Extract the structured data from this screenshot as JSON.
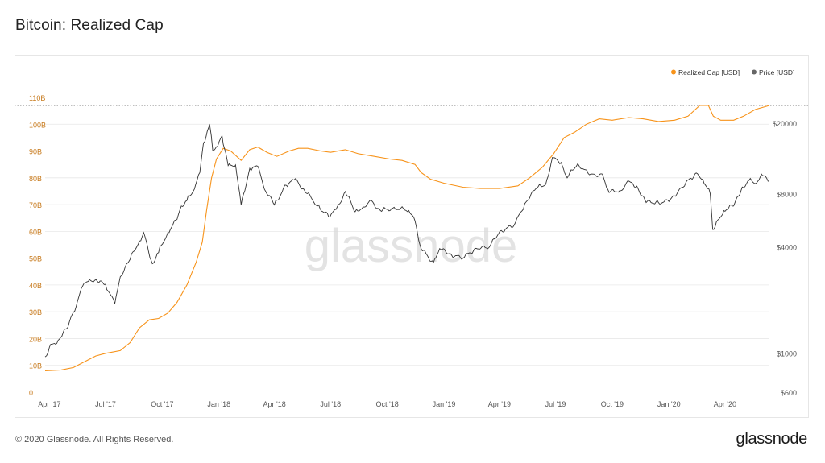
{
  "page": {
    "title": "Bitcoin: Realized Cap",
    "footer_copyright": "© 2020 Glassnode. All Rights Reserved.",
    "footer_brand": "glassnode",
    "watermark": "glassnode"
  },
  "colors": {
    "realized_cap": "#f7931a",
    "price": "#333333",
    "left_axis_text": "#c77a1d",
    "grid": "#e8e8e8"
  },
  "chart_data": {
    "type": "line",
    "title": "Bitcoin: Realized Cap",
    "legend": {
      "placement": "top-right",
      "entries": [
        {
          "label": "Realized Cap [USD]",
          "color": "#f7931a"
        },
        {
          "label": "Price [USD]",
          "color": "#666666"
        }
      ]
    },
    "x_axis": {
      "type": "date",
      "range": [
        "2017-03-25",
        "2020-06-12"
      ],
      "ticks": [
        {
          "date": "2017-04-01",
          "label": "Apr '17"
        },
        {
          "date": "2017-07-01",
          "label": "Jul '17"
        },
        {
          "date": "2017-10-01",
          "label": "Oct '17"
        },
        {
          "date": "2018-01-01",
          "label": "Jan '18"
        },
        {
          "date": "2018-04-01",
          "label": "Apr '18"
        },
        {
          "date": "2018-07-01",
          "label": "Jul '18"
        },
        {
          "date": "2018-10-01",
          "label": "Oct '18"
        },
        {
          "date": "2019-01-01",
          "label": "Jan '19"
        },
        {
          "date": "2019-04-01",
          "label": "Apr '19"
        },
        {
          "date": "2019-07-01",
          "label": "Jul '19"
        },
        {
          "date": "2019-10-01",
          "label": "Oct '19"
        },
        {
          "date": "2020-01-01",
          "label": "Jan '20"
        },
        {
          "date": "2020-04-01",
          "label": "Apr '20"
        }
      ]
    },
    "y_left": {
      "scale": "linear",
      "range": [
        0,
        110000000000
      ],
      "ticks": [
        {
          "value": 0,
          "label": "0"
        },
        {
          "value": 10000000000,
          "label": "10B"
        },
        {
          "value": 20000000000,
          "label": "20B"
        },
        {
          "value": 30000000000,
          "label": "30B"
        },
        {
          "value": 40000000000,
          "label": "40B"
        },
        {
          "value": 50000000000,
          "label": "50B"
        },
        {
          "value": 60000000000,
          "label": "60B"
        },
        {
          "value": 70000000000,
          "label": "70B"
        },
        {
          "value": 80000000000,
          "label": "80B"
        },
        {
          "value": 90000000000,
          "label": "90B"
        },
        {
          "value": 100000000000,
          "label": "100B"
        },
        {
          "value": 110000000000,
          "label": "110B"
        }
      ]
    },
    "y_right": {
      "scale": "log",
      "range": [
        600,
        20000
      ],
      "ticks": [
        {
          "value": 600,
          "label": "$600"
        },
        {
          "value": 1000,
          "label": "$1000"
        },
        {
          "value": 4000,
          "label": "$4000"
        },
        {
          "value": 8000,
          "label": "$8000"
        },
        {
          "value": 20000,
          "label": "$20000"
        }
      ]
    },
    "reference_line": {
      "value": 107000000000,
      "style": "dotted"
    },
    "series": [
      {
        "name": "Realized Cap [USD]",
        "axis": "left",
        "points": [
          [
            "2017-03-25",
            8000000000
          ],
          [
            "2017-04-20",
            8300000000
          ],
          [
            "2017-05-10",
            9200000000
          ],
          [
            "2017-05-25",
            11000000000
          ],
          [
            "2017-06-15",
            13500000000
          ],
          [
            "2017-07-01",
            14500000000
          ],
          [
            "2017-07-25",
            15500000000
          ],
          [
            "2017-08-10",
            18500000000
          ],
          [
            "2017-08-25",
            24000000000
          ],
          [
            "2017-09-10",
            27000000000
          ],
          [
            "2017-09-25",
            27500000000
          ],
          [
            "2017-10-10",
            29500000000
          ],
          [
            "2017-10-25",
            33500000000
          ],
          [
            "2017-11-10",
            40000000000
          ],
          [
            "2017-11-25",
            48500000000
          ],
          [
            "2017-12-05",
            56000000000
          ],
          [
            "2017-12-12",
            68000000000
          ],
          [
            "2017-12-20",
            80000000000
          ],
          [
            "2017-12-28",
            87000000000
          ],
          [
            "2018-01-08",
            91000000000
          ],
          [
            "2018-01-20",
            90000000000
          ],
          [
            "2018-02-06",
            86500000000
          ],
          [
            "2018-02-20",
            90500000000
          ],
          [
            "2018-03-05",
            91500000000
          ],
          [
            "2018-03-20",
            89500000000
          ],
          [
            "2018-04-05",
            88000000000
          ],
          [
            "2018-04-25",
            90000000000
          ],
          [
            "2018-05-10",
            91000000000
          ],
          [
            "2018-05-25",
            91000000000
          ],
          [
            "2018-06-15",
            90000000000
          ],
          [
            "2018-07-01",
            89500000000
          ],
          [
            "2018-07-25",
            90500000000
          ],
          [
            "2018-08-15",
            89000000000
          ],
          [
            "2018-09-10",
            88000000000
          ],
          [
            "2018-10-05",
            87000000000
          ],
          [
            "2018-10-25",
            86500000000
          ],
          [
            "2018-11-15",
            85000000000
          ],
          [
            "2018-11-25",
            82000000000
          ],
          [
            "2018-12-10",
            79500000000
          ],
          [
            "2019-01-01",
            78000000000
          ],
          [
            "2019-02-01",
            76500000000
          ],
          [
            "2019-03-01",
            76000000000
          ],
          [
            "2019-04-01",
            76000000000
          ],
          [
            "2019-05-01",
            77000000000
          ],
          [
            "2019-05-20",
            80000000000
          ],
          [
            "2019-06-10",
            84000000000
          ],
          [
            "2019-06-28",
            89000000000
          ],
          [
            "2019-07-15",
            95000000000
          ],
          [
            "2019-08-01",
            97000000000
          ],
          [
            "2019-08-20",
            100000000000
          ],
          [
            "2019-09-10",
            102000000000
          ],
          [
            "2019-10-01",
            101500000000
          ],
          [
            "2019-10-28",
            102500000000
          ],
          [
            "2019-11-20",
            102000000000
          ],
          [
            "2019-12-15",
            101000000000
          ],
          [
            "2020-01-10",
            101500000000
          ],
          [
            "2020-02-01",
            103000000000
          ],
          [
            "2020-02-20",
            107000000000
          ],
          [
            "2020-03-05",
            107000000000
          ],
          [
            "2020-03-13",
            103000000000
          ],
          [
            "2020-03-25",
            101500000000
          ],
          [
            "2020-04-15",
            101500000000
          ],
          [
            "2020-05-01",
            103000000000
          ],
          [
            "2020-05-20",
            105500000000
          ],
          [
            "2020-06-12",
            107000000000
          ]
        ]
      },
      {
        "name": "Price [USD]",
        "axis": "right",
        "points": [
          [
            "2017-03-25",
            950
          ],
          [
            "2017-04-01",
            1080
          ],
          [
            "2017-04-15",
            1180
          ],
          [
            "2017-05-01",
            1400
          ],
          [
            "2017-05-10",
            1700
          ],
          [
            "2017-05-25",
            2400
          ],
          [
            "2017-06-05",
            2600
          ],
          [
            "2017-06-20",
            2500
          ],
          [
            "2017-07-01",
            2450
          ],
          [
            "2017-07-16",
            1900
          ],
          [
            "2017-07-25",
            2700
          ],
          [
            "2017-08-10",
            3400
          ],
          [
            "2017-08-25",
            4300
          ],
          [
            "2017-09-01",
            4800
          ],
          [
            "2017-09-15",
            3200
          ],
          [
            "2017-09-25",
            3700
          ],
          [
            "2017-10-10",
            4800
          ],
          [
            "2017-10-25",
            5700
          ],
          [
            "2017-11-01",
            6800
          ],
          [
            "2017-11-10",
            7300
          ],
          [
            "2017-11-20",
            8200
          ],
          [
            "2017-12-01",
            10500
          ],
          [
            "2017-12-07",
            15500
          ],
          [
            "2017-12-17",
            19500
          ],
          [
            "2017-12-22",
            14000
          ],
          [
            "2017-12-30",
            14800
          ],
          [
            "2018-01-06",
            17000
          ],
          [
            "2018-01-16",
            11500
          ],
          [
            "2018-01-28",
            11600
          ],
          [
            "2018-02-06",
            6900
          ],
          [
            "2018-02-20",
            11100
          ],
          [
            "2018-03-05",
            11400
          ],
          [
            "2018-03-18",
            8200
          ],
          [
            "2018-04-01",
            6900
          ],
          [
            "2018-04-20",
            8900
          ],
          [
            "2018-05-05",
            9700
          ],
          [
            "2018-05-20",
            8300
          ],
          [
            "2018-06-10",
            6800
          ],
          [
            "2018-06-28",
            5900
          ],
          [
            "2018-07-10",
            6500
          ],
          [
            "2018-07-25",
            8200
          ],
          [
            "2018-08-10",
            6300
          ],
          [
            "2018-08-25",
            6700
          ],
          [
            "2018-09-05",
            7300
          ],
          [
            "2018-09-20",
            6400
          ],
          [
            "2018-10-10",
            6600
          ],
          [
            "2018-11-05",
            6400
          ],
          [
            "2018-11-15",
            5600
          ],
          [
            "2018-11-25",
            3900
          ],
          [
            "2018-12-15",
            3250
          ],
          [
            "2018-12-25",
            3900
          ],
          [
            "2019-01-10",
            3650
          ],
          [
            "2019-02-01",
            3450
          ],
          [
            "2019-02-20",
            3900
          ],
          [
            "2019-03-15",
            3950
          ],
          [
            "2019-04-02",
            4900
          ],
          [
            "2019-04-25",
            5300
          ],
          [
            "2019-05-12",
            7000
          ],
          [
            "2019-05-30",
            8500
          ],
          [
            "2019-06-15",
            9000
          ],
          [
            "2019-06-26",
            12800
          ],
          [
            "2019-07-10",
            12000
          ],
          [
            "2019-07-20",
            9800
          ],
          [
            "2019-08-06",
            11800
          ],
          [
            "2019-08-25",
            10200
          ],
          [
            "2019-09-15",
            10300
          ],
          [
            "2019-09-26",
            8100
          ],
          [
            "2019-10-15",
            8300
          ],
          [
            "2019-10-26",
            9400
          ],
          [
            "2019-11-10",
            8800
          ],
          [
            "2019-11-25",
            7100
          ],
          [
            "2019-12-15",
            7100
          ],
          [
            "2020-01-01",
            7200
          ],
          [
            "2020-01-20",
            8600
          ],
          [
            "2020-02-12",
            10300
          ],
          [
            "2020-02-25",
            9600
          ],
          [
            "2020-03-08",
            8000
          ],
          [
            "2020-03-12",
            5000
          ],
          [
            "2020-03-16",
            5200
          ],
          [
            "2020-03-30",
            6400
          ],
          [
            "2020-04-15",
            6800
          ],
          [
            "2020-04-29",
            8700
          ],
          [
            "2020-05-10",
            9500
          ],
          [
            "2020-05-20",
            9100
          ],
          [
            "2020-06-01",
            10100
          ],
          [
            "2020-06-12",
            9400
          ]
        ]
      }
    ]
  }
}
